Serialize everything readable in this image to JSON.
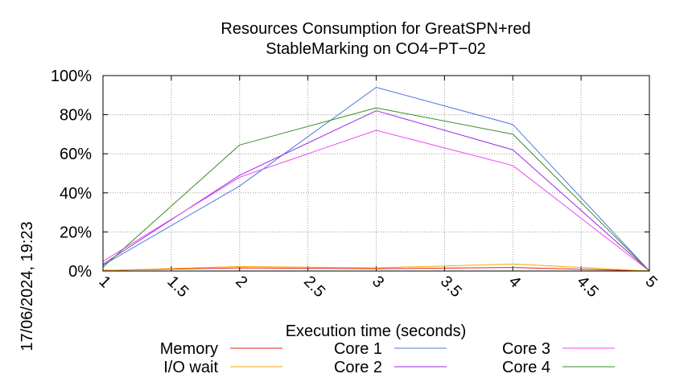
{
  "chart_data": {
    "type": "line",
    "title_line1": "Resources Consumption for GreatSPN+red",
    "title_line2": "StableMarking on CO4−PT−02",
    "xlabel": "Execution time (seconds)",
    "side_label": "17/06/2024, 19:23",
    "xlim": [
      1,
      5
    ],
    "ylim": [
      0,
      100
    ],
    "x_ticks": [
      {
        "value": 1,
        "label": "1"
      },
      {
        "value": 1.5,
        "label": "1.5"
      },
      {
        "value": 2,
        "label": "2"
      },
      {
        "value": 2.5,
        "label": "2.5"
      },
      {
        "value": 3,
        "label": "3"
      },
      {
        "value": 3.5,
        "label": "3.5"
      },
      {
        "value": 4,
        "label": "4"
      },
      {
        "value": 4.5,
        "label": "4.5"
      },
      {
        "value": 5,
        "label": "5"
      }
    ],
    "y_ticks": [
      {
        "value": 0,
        "label": "0%"
      },
      {
        "value": 20,
        "label": "20%"
      },
      {
        "value": 40,
        "label": "40%"
      },
      {
        "value": 60,
        "label": "60%"
      },
      {
        "value": 80,
        "label": "80%"
      },
      {
        "value": 100,
        "label": "100%"
      }
    ],
    "grid": true,
    "legend_position": "bottom",
    "x": [
      1,
      2,
      3,
      4,
      5
    ],
    "series": [
      {
        "name": "Memory",
        "color": "#e8221a",
        "values": [
          0.3,
          1.6,
          1.2,
          1.8,
          0
        ]
      },
      {
        "name": "I/O wait",
        "color": "#f5a800",
        "values": [
          0.2,
          2.3,
          1.6,
          3.6,
          0
        ]
      },
      {
        "name": "Core 1",
        "color": "#4f78d8",
        "values": [
          3,
          43.5,
          94,
          75,
          0
        ]
      },
      {
        "name": "Core 2",
        "color": "#9a2ae8",
        "values": [
          3.5,
          49,
          82,
          62,
          0
        ]
      },
      {
        "name": "Core 3",
        "color": "#ee4cf0",
        "values": [
          5,
          48,
          72,
          54,
          0
        ]
      },
      {
        "name": "Core 4",
        "color": "#3a8c28",
        "values": [
          2,
          64.5,
          83.5,
          70,
          0
        ]
      }
    ]
  }
}
